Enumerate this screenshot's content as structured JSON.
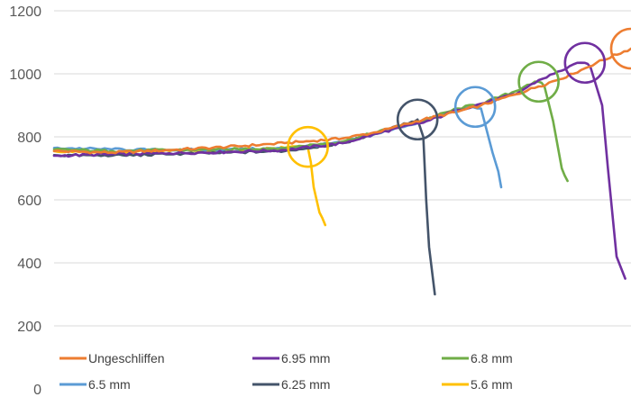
{
  "chart_data": {
    "type": "line",
    "title": "",
    "xlabel": "",
    "ylabel": "",
    "ylim": [
      0,
      1200
    ],
    "y_ticks": [
      "0",
      "200",
      "400",
      "600",
      "800",
      "1000",
      "1200"
    ],
    "grid": "horizontal",
    "legend_position": "bottom",
    "x": [
      0,
      5,
      10,
      15,
      20,
      25,
      30,
      35,
      40,
      45,
      50,
      55,
      60,
      65,
      70,
      75,
      80,
      85,
      90,
      95,
      100
    ],
    "series": [
      {
        "name": "Ungeschliffen",
        "color": "#ED7D31",
        "x": [
          0,
          10,
          20,
          30,
          40,
          50,
          56,
          60,
          64,
          70,
          74,
          80,
          84,
          90,
          94,
          100
        ],
        "values": [
          755,
          750,
          758,
          768,
          780,
          795,
          815,
          835,
          855,
          880,
          900,
          935,
          960,
          1000,
          1035,
          1080
        ]
      },
      {
        "name": "6.95 mm",
        "color": "#7030A0",
        "x": [
          0,
          10,
          20,
          30,
          40,
          50,
          56,
          60,
          64,
          70,
          74,
          80,
          84,
          88,
          90,
          92,
          93,
          95,
          96,
          97.5,
          99
        ],
        "values": [
          740,
          745,
          748,
          752,
          758,
          780,
          810,
          830,
          845,
          885,
          905,
          935,
          980,
          1010,
          1030,
          1035,
          1020,
          900,
          700,
          420,
          350
        ]
      },
      {
        "name": "6.8 mm",
        "color": "#70AD47",
        "x": [
          0,
          10,
          20,
          30,
          40,
          50,
          56,
          60,
          64,
          70,
          74,
          80,
          82,
          84,
          85,
          86.5,
          88,
          89
        ],
        "values": [
          760,
          755,
          758,
          760,
          765,
          785,
          815,
          835,
          852,
          890,
          905,
          945,
          965,
          975,
          960,
          850,
          700,
          660
        ]
      },
      {
        "name": "6.5 mm",
        "color": "#5B9BD5",
        "x": [
          0,
          10,
          20,
          30,
          40,
          50,
          56,
          60,
          64,
          70,
          72,
          74,
          75,
          76,
          77,
          77.5
        ],
        "values": [
          765,
          760,
          758,
          760,
          763,
          782,
          810,
          830,
          850,
          885,
          895,
          890,
          820,
          750,
          690,
          640
        ]
      },
      {
        "name": "6.25 mm",
        "color": "#44546A",
        "x": [
          0,
          10,
          20,
          30,
          40,
          50,
          56,
          60,
          62,
          63,
          64,
          64.5,
          65,
          66
        ],
        "values": [
          742,
          740,
          745,
          750,
          755,
          780,
          812,
          835,
          848,
          855,
          800,
          600,
          450,
          300
        ]
      },
      {
        "name": "5.6 mm",
        "color": "#FFC000",
        "x": [
          0,
          10,
          20,
          30,
          40,
          42,
          44,
          44.5,
          45,
          46,
          47
        ],
        "values": [
          755,
          752,
          755,
          758,
          765,
          770,
          765,
          720,
          640,
          560,
          520
        ]
      }
    ],
    "annotations": [
      {
        "type": "circle",
        "series": "Ungeschliffen",
        "x": 100,
        "y": 1080
      },
      {
        "type": "circle",
        "series": "6.95 mm",
        "x": 92,
        "y": 1035
      },
      {
        "type": "circle",
        "series": "6.8 mm",
        "x": 84,
        "y": 975
      },
      {
        "type": "circle",
        "series": "6.5 mm",
        "x": 73,
        "y": 895
      },
      {
        "type": "circle",
        "series": "6.25 mm",
        "x": 63,
        "y": 855
      },
      {
        "type": "circle",
        "series": "5.6 mm",
        "x": 44,
        "y": 768
      }
    ]
  },
  "legend": [
    {
      "label": "Ungeschliffen",
      "color": "#ED7D31"
    },
    {
      "label": "6.95 mm",
      "color": "#7030A0"
    },
    {
      "label": "6.8 mm",
      "color": "#70AD47"
    },
    {
      "label": "6.5 mm",
      "color": "#5B9BD5"
    },
    {
      "label": "6.25 mm",
      "color": "#44546A"
    },
    {
      "label": "5.6 mm",
      "color": "#FFC000"
    }
  ]
}
